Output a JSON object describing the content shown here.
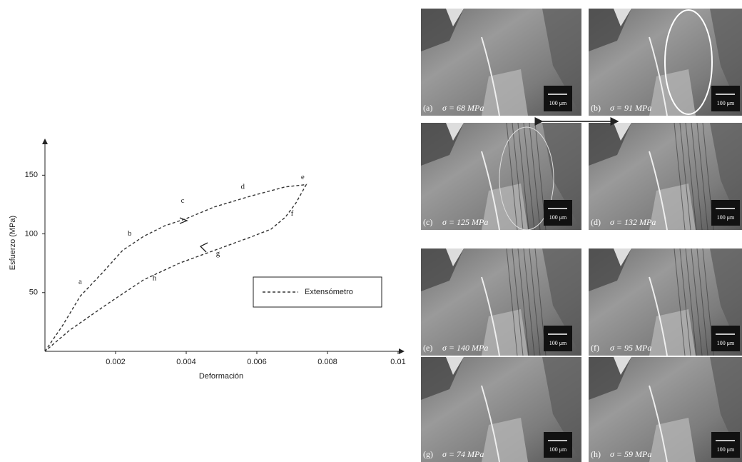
{
  "chart_data": {
    "type": "line",
    "x_label": "Deformación",
    "y_label": "Esfuerzo (MPa)",
    "x": [
      0,
      0.0005,
      0.001,
      0.0016,
      0.0022,
      0.0028,
      0.0034,
      0.004,
      0.0048,
      0.0058,
      0.0068,
      0.0074,
      0.0071,
      0.0068,
      0.0064,
      0.0058,
      0.0048,
      0.0038,
      0.0028,
      0.0018,
      0.0007,
      0
    ],
    "series": [
      {
        "name": "Extensómetro",
        "color": "#333333",
        "values": [
          0,
          22,
          47,
          66,
          86,
          98,
          107,
          113,
          123,
          132,
          140,
          142,
          126,
          114,
          104,
          97,
          86,
          75,
          61,
          41,
          18,
          0
        ]
      }
    ],
    "xlim": [
      0,
      0.01
    ],
    "xticks": [
      0.002,
      0.004,
      0.006,
      0.008,
      0.01
    ],
    "ylim": [
      0,
      180
    ],
    "yticks": [
      50,
      100,
      150
    ],
    "annotations": [
      {
        "text": "a",
        "x": 0.001,
        "y": 59
      },
      {
        "text": "b",
        "x": 0.0024,
        "y": 100
      },
      {
        "text": "c",
        "x": 0.0039,
        "y": 128
      },
      {
        "text": "d",
        "x": 0.0056,
        "y": 140
      },
      {
        "text": "e",
        "x": 0.0073,
        "y": 148
      },
      {
        "text": "f",
        "x": 0.007,
        "y": 117
      },
      {
        "text": "g",
        "x": 0.0049,
        "y": 83
      },
      {
        "text": "h",
        "x": 0.0031,
        "y": 62
      }
    ]
  },
  "panels": [
    {
      "letter": "(a)",
      "stress": "σ = 68 MPa",
      "scale": "100 μm"
    },
    {
      "letter": "(b)",
      "stress": "σ = 91 MPa",
      "scale": "100 μm"
    },
    {
      "letter": "(c)",
      "stress": "σ = 125 MPa",
      "scale": "100 μm"
    },
    {
      "letter": "(d)",
      "stress": "σ = 132 MPa",
      "scale": "100 μm"
    },
    {
      "letter": "(e)",
      "stress": "σ = 140 MPa",
      "scale": "100 μm"
    },
    {
      "letter": "(f)",
      "stress": "σ = 95 MPa",
      "scale": "100 μm"
    },
    {
      "letter": "(g)",
      "stress": "σ = 74 MPa",
      "scale": "100 μm"
    },
    {
      "letter": "(h)",
      "stress": "σ = 59 MPa",
      "scale": "100 μm"
    }
  ]
}
